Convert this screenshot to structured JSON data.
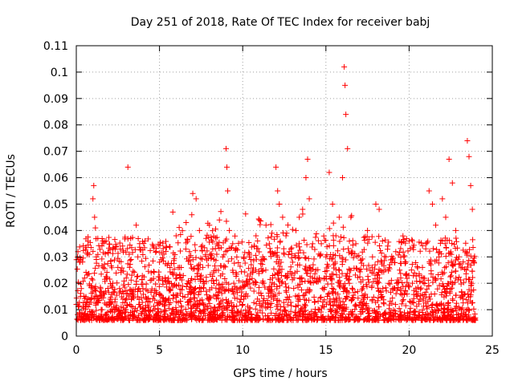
{
  "chart_data": {
    "type": "scatter",
    "title": "Day 251 of 2018, Rate Of TEC Index for receiver babj",
    "xlabel": "GPS time / hours",
    "ylabel": "ROTI / TECUs",
    "xlim": [
      0,
      25
    ],
    "ylim": [
      0,
      0.11
    ],
    "xticks": [
      0,
      5,
      10,
      15,
      20,
      25
    ],
    "yticks": [
      0,
      0.01,
      0.02,
      0.03,
      0.04,
      0.05,
      0.06,
      0.07,
      0.08,
      0.09,
      0.1,
      0.11
    ],
    "xtick_labels": [
      "0",
      "5",
      "10",
      "15",
      "20",
      "25"
    ],
    "ytick_labels": [
      "0",
      "0.01",
      "0.02",
      "0.03",
      "0.04",
      "0.05",
      "0.06",
      "0.07",
      "0.08",
      "0.09",
      "0.1",
      "0.11"
    ],
    "grid": true,
    "marker": "plus",
    "color": "#ff0000",
    "series": [
      {
        "values_x": [
          0.0,
          0.1,
          0.2,
          0.25,
          0.3,
          0.4,
          0.5,
          0.7,
          0.9,
          1.0,
          1.05,
          1.1,
          1.15,
          1.2,
          1.3,
          1.5,
          1.7,
          2.0,
          2.2,
          2.4,
          2.5,
          2.6,
          2.8,
          3.0,
          3.1,
          3.2,
          3.4,
          3.6,
          3.7,
          3.8,
          4.0,
          4.2,
          4.5,
          4.8,
          5.0,
          5.2,
          5.4,
          5.6,
          5.8,
          6.0,
          6.2,
          6.4,
          6.6,
          6.8,
          7.0,
          7.2,
          7.4,
          7.6,
          7.8,
          8.0,
          8.2,
          8.4,
          8.6,
          8.8,
          9.0,
          9.05,
          9.1,
          9.2,
          9.4,
          9.6,
          9.8,
          10.0,
          10.2,
          10.4,
          10.6,
          10.8,
          11.0,
          11.2,
          11.4,
          11.6,
          11.8,
          12.0,
          12.1,
          12.2,
          12.4,
          12.6,
          12.8,
          13.0,
          13.2,
          13.4,
          13.6,
          13.8,
          13.9,
          14.0,
          14.2,
          14.4,
          14.6,
          14.8,
          15.0,
          15.2,
          15.4,
          15.6,
          15.8,
          16.0,
          16.1,
          16.15,
          16.2,
          16.3,
          16.5,
          16.8,
          17.0,
          17.2,
          17.5,
          17.8,
          18.0,
          18.2,
          18.4,
          18.6,
          18.8,
          19.0,
          19.2,
          19.5,
          19.8,
          20.0,
          20.2,
          20.5,
          20.8,
          21.0,
          21.2,
          21.4,
          21.6,
          21.8,
          22.0,
          22.2,
          22.4,
          22.6,
          22.8,
          23.0,
          23.2,
          23.4,
          23.5,
          23.6,
          23.7,
          23.8,
          23.9
        ],
        "values_y": [
          0.012,
          0.032,
          0.028,
          0.015,
          0.018,
          0.011,
          0.022,
          0.014,
          0.019,
          0.052,
          0.057,
          0.045,
          0.041,
          0.03,
          0.013,
          0.01,
          0.016,
          0.012,
          0.02,
          0.034,
          0.026,
          0.018,
          0.014,
          0.022,
          0.064,
          0.026,
          0.015,
          0.042,
          0.03,
          0.012,
          0.018,
          0.014,
          0.024,
          0.016,
          0.028,
          0.012,
          0.034,
          0.02,
          0.047,
          0.038,
          0.026,
          0.015,
          0.043,
          0.032,
          0.054,
          0.052,
          0.04,
          0.026,
          0.037,
          0.042,
          0.033,
          0.025,
          0.044,
          0.03,
          0.071,
          0.064,
          0.055,
          0.04,
          0.035,
          0.024,
          0.018,
          0.012,
          0.016,
          0.03,
          0.025,
          0.038,
          0.044,
          0.03,
          0.042,
          0.035,
          0.022,
          0.064,
          0.055,
          0.05,
          0.045,
          0.038,
          0.032,
          0.028,
          0.04,
          0.045,
          0.048,
          0.06,
          0.067,
          0.052,
          0.035,
          0.025,
          0.022,
          0.018,
          0.03,
          0.062,
          0.05,
          0.038,
          0.045,
          0.06,
          0.102,
          0.095,
          0.084,
          0.071,
          0.045,
          0.035,
          0.025,
          0.018,
          0.04,
          0.03,
          0.05,
          0.048,
          0.036,
          0.03,
          0.026,
          0.018,
          0.032,
          0.022,
          0.028,
          0.036,
          0.02,
          0.015,
          0.026,
          0.035,
          0.055,
          0.05,
          0.042,
          0.03,
          0.052,
          0.045,
          0.067,
          0.058,
          0.04,
          0.03,
          0.026,
          0.032,
          0.074,
          0.068,
          0.057,
          0.048,
          0.028
        ]
      }
    ]
  }
}
